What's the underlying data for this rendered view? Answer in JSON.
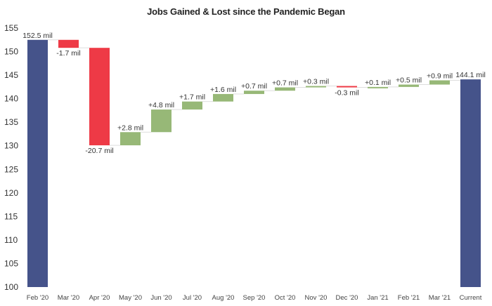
{
  "title": "Jobs Gained & Lost since the Pandemic Began",
  "colors": {
    "total": "#45538A",
    "decrease": "#EE3A46",
    "increase": "#97B877",
    "connector": "#dddddd"
  },
  "chart_data": {
    "type": "bar",
    "subtype": "waterfall",
    "title": "Jobs Gained & Lost since the Pandemic Began",
    "xlabel": "",
    "ylabel": "",
    "ylim": [
      100,
      155
    ],
    "yticks": [
      100,
      105,
      110,
      115,
      120,
      125,
      130,
      135,
      140,
      145,
      150,
      155
    ],
    "grid": false,
    "legend": null,
    "categories": [
      "Feb '20",
      "Mar '20",
      "Apr '20",
      "May '20",
      "Jun '20",
      "Jul '20",
      "Aug '20",
      "Sep '20",
      "Oct '20",
      "Nov '20",
      "Dec '20",
      "Jan '21",
      "Feb '21",
      "Mar '21",
      "Current"
    ],
    "values": [
      152.5,
      -1.7,
      -20.7,
      2.8,
      4.8,
      1.7,
      1.6,
      0.7,
      0.7,
      0.3,
      -0.3,
      0.1,
      0.5,
      0.9,
      144.1
    ],
    "kinds": [
      "total",
      "delta",
      "delta",
      "delta",
      "delta",
      "delta",
      "delta",
      "delta",
      "delta",
      "delta",
      "delta",
      "delta",
      "delta",
      "delta",
      "total"
    ],
    "labels": [
      "152.5 mil",
      "-1.7 mil",
      "-20.7 mil",
      "+2.8 mil",
      "+4.8 mil",
      "+1.7 mil",
      "+1.6 mil",
      "+0.7 mil",
      "+0.7 mil",
      "+0.3 mil",
      "-0.3 mil",
      "+0.1 mil",
      "+0.5 mil",
      "+0.9 mil",
      "144.1 mil"
    ],
    "units": "millions of jobs"
  }
}
